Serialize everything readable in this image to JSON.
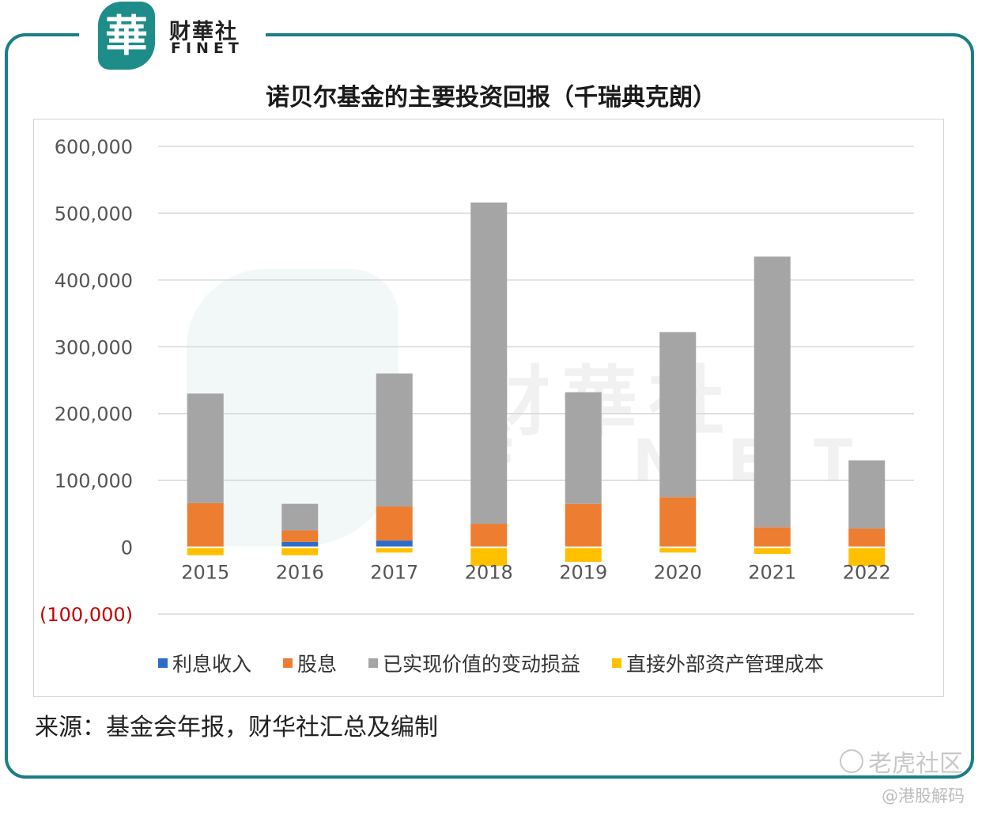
{
  "header": {
    "logo_char": "華",
    "logo_cn": "财華社",
    "logo_en": "FINET"
  },
  "chart_data": {
    "type": "bar",
    "stacked": true,
    "title": "诺贝尔基金的主要投资回报（千瑞典克朗）",
    "categories": [
      "2015",
      "2016",
      "2017",
      "2018",
      "2019",
      "2020",
      "2021",
      "2022"
    ],
    "series": [
      {
        "name": "利息收入",
        "color": "#2e6cc9",
        "values": [
          0,
          8000,
          10000,
          0,
          0,
          0,
          0,
          0
        ]
      },
      {
        "name": "股息",
        "color": "#ed7d31",
        "values": [
          66000,
          17000,
          51000,
          35000,
          65000,
          75000,
          30000,
          28000
        ]
      },
      {
        "name": "已实现价值的变动损益",
        "color": "#a5a5a5",
        "values": [
          164000,
          40000,
          199000,
          481000,
          167000,
          247000,
          405000,
          102000
        ]
      },
      {
        "name": "直接外部资产管理成本",
        "color": "#ffc000",
        "values": [
          -12000,
          -12000,
          -8000,
          -28000,
          -22000,
          -8000,
          -10000,
          -28000
        ]
      }
    ],
    "y_ticks": [
      "600,000",
      "500,000",
      "400,000",
      "300,000",
      "200,000",
      "100,000",
      "0",
      "(100,000)"
    ],
    "y_tick_values": [
      600000,
      500000,
      400000,
      300000,
      200000,
      100000,
      0,
      -100000
    ],
    "ylim": [
      -100000,
      600000
    ],
    "grid": true,
    "legend_position": "bottom",
    "negative_tick_color": "#c00000",
    "gridline_color": "#d9d9d9"
  },
  "watermark": {
    "cn": "财華社",
    "en": "FINET",
    "community": "老虎社区",
    "handle": "@港股解码"
  },
  "source": "来源：基金会年报，财华社汇总及编制"
}
